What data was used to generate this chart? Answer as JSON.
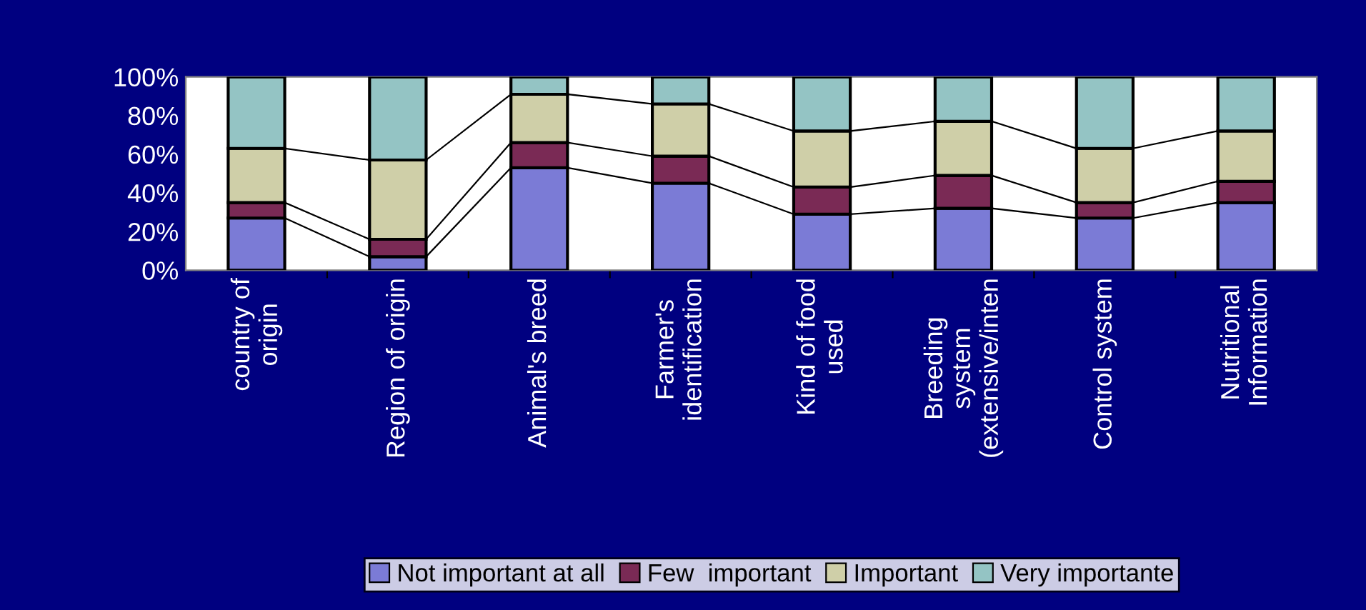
{
  "chart_data": {
    "type": "bar",
    "stacked": true,
    "categories": [
      "country of\norigin",
      "Region of origin",
      "Animal's breed",
      "Farmer's\nidentification",
      "Kind of food\nused",
      "Breeding\nsystem\n(extensive/inten",
      "Control system",
      "Nutritional\nInformation"
    ],
    "series": [
      {
        "name": "Not important at all",
        "color": "#7b7bd6",
        "values": [
          27,
          7,
          53,
          45,
          29,
          32,
          27,
          35
        ]
      },
      {
        "name": "Few  important",
        "color": "#7a2a55",
        "values": [
          8,
          9,
          13,
          14,
          14,
          17,
          8,
          11
        ]
      },
      {
        "name": "Important",
        "color": "#cfcfa8",
        "values": [
          28,
          41,
          25,
          27,
          29,
          28,
          28,
          26
        ]
      },
      {
        "name": "Very importante",
        "color": "#94c4c4",
        "values": [
          37,
          43,
          9,
          14,
          28,
          23,
          37,
          28
        ]
      }
    ],
    "ylim": [
      0,
      100
    ],
    "yticks": [
      {
        "value": 0,
        "label": "0%"
      },
      {
        "value": 20,
        "label": "20%"
      },
      {
        "value": 40,
        "label": "40%"
      },
      {
        "value": 60,
        "label": "60%"
      },
      {
        "value": 80,
        "label": "80%"
      },
      {
        "value": 100,
        "label": "100%"
      }
    ],
    "grid": false,
    "legend": "bottom"
  }
}
